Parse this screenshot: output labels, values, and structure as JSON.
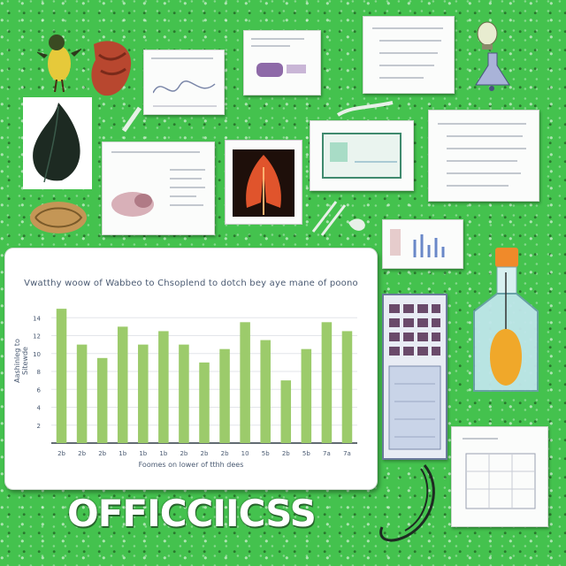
{
  "colors": {
    "background": "#44c24e",
    "bar_fill": "#9ccb6b",
    "axis": "#2f3a44",
    "text": "#4a5a72"
  },
  "logo": {
    "text": "OFFICCIICSS"
  },
  "chart_data": {
    "type": "bar",
    "title": "Vwatthy woow of Wabbeo to Chsoplend to dotch bey aye mane of poono",
    "xlabel": "Foomes on lower of tthh dees",
    "ylabel": "Aashinleg to Sitewde",
    "ylim": [
      0,
      16
    ],
    "yticks": [
      "14",
      "12",
      "10",
      "8",
      "6",
      "4",
      "2"
    ],
    "categories": [
      "2b",
      "2b",
      "2b",
      "1b",
      "1b",
      "1b",
      "2b",
      "2b",
      "2b",
      "10",
      "5b",
      "2b",
      "5b",
      "7a",
      "7a"
    ],
    "values": [
      15,
      11,
      9.5,
      13,
      11,
      12.5,
      11,
      9,
      10.5,
      13.5,
      11.5,
      7,
      10.5,
      13.5,
      12.5
    ]
  },
  "icons": [
    "bird-icon",
    "red-bird-icon",
    "leaf-icon",
    "walnut-icon",
    "hand-icon",
    "lung-icon",
    "pipette-icon",
    "flask-icon",
    "lightbulb-icon",
    "bottle-icon",
    "fish-icon",
    "stethoscope-icon"
  ]
}
